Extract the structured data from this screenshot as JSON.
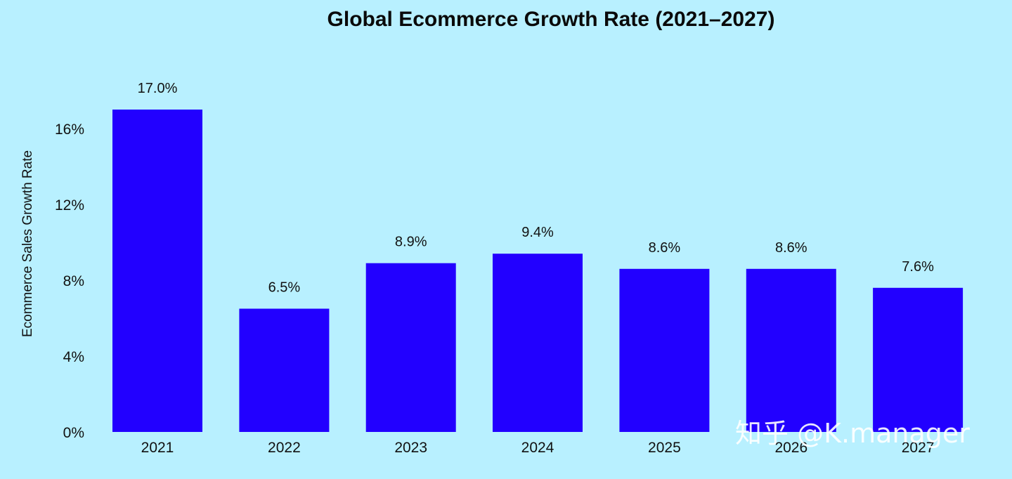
{
  "chart_data": {
    "type": "bar",
    "title": "Global Ecommerce Growth Rate (2021–2027)",
    "xlabel": "",
    "ylabel": "Ecommerce Sales Growth Rate",
    "categories": [
      "2021",
      "2022",
      "2023",
      "2024",
      "2025",
      "2026",
      "2027"
    ],
    "values": [
      17.0,
      6.5,
      8.9,
      9.4,
      8.6,
      8.6,
      7.6
    ],
    "data_labels": [
      "17.0%",
      "6.5%",
      "8.9%",
      "9.4%",
      "8.6%",
      "8.6%",
      "7.6%"
    ],
    "y_ticks": [
      0,
      4,
      8,
      12,
      16
    ],
    "y_tick_labels": [
      "0%",
      "4%",
      "8%",
      "12%",
      "16%"
    ],
    "ylim": [
      0,
      19.0
    ],
    "grid": false,
    "legend": "none",
    "colors": {
      "background": "#b8f0ff",
      "bar": "#2200ff",
      "text": "#111111"
    }
  },
  "watermark": "知乎 @K.manager"
}
